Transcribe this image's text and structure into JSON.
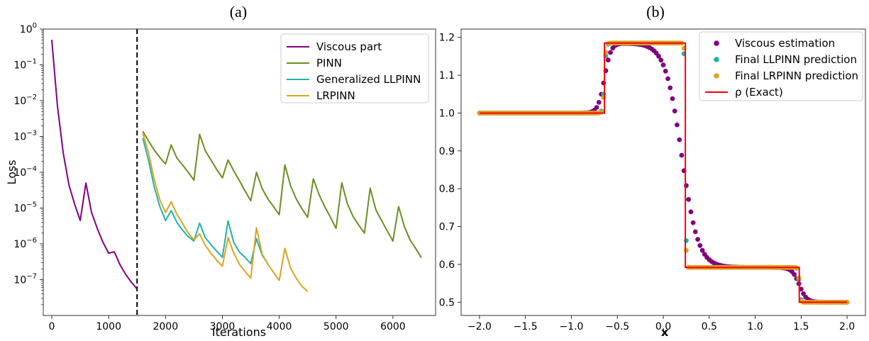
{
  "panel_labels": [
    "(a)",
    "(b)"
  ],
  "chart_data": [
    {
      "type": "line",
      "panel": "(a)",
      "xlabel": "Iterations",
      "ylabel": "Loss",
      "yscale": "log",
      "xlim": [
        -150,
        6750
      ],
      "ylim": [
        1e-08,
        1
      ],
      "xticks": [
        0,
        1000,
        2000,
        3000,
        4000,
        5000,
        6000
      ],
      "xtick_labels": [
        "0",
        "1000",
        "2000",
        "3000",
        "4000",
        "5000",
        "6000"
      ],
      "yticks": [
        1,
        0.1,
        0.01,
        0.001,
        0.0001,
        1e-05,
        1e-06,
        1e-07
      ],
      "ytick_labels": [
        {
          "base": "10",
          "exp": "0"
        },
        {
          "base": "10",
          "exp": "−1"
        },
        {
          "base": "10",
          "exp": "−2"
        },
        {
          "base": "10",
          "exp": "−3"
        },
        {
          "base": "10",
          "exp": "−4"
        },
        {
          "base": "10",
          "exp": "−5"
        },
        {
          "base": "10",
          "exp": "−6"
        },
        {
          "base": "10",
          "exp": "−7"
        }
      ],
      "vline": {
        "x": 1500,
        "style": "dashed",
        "color": "#000000"
      },
      "legend_position": "top-right",
      "series": [
        {
          "name": "Viscous part",
          "color": "#800080",
          "x": [
            0,
            100,
            200,
            300,
            400,
            500,
            600,
            700,
            800,
            900,
            1000,
            1100,
            1200,
            1300,
            1400,
            1500
          ],
          "y": [
            0.5,
            0.007,
            0.00035,
            4.5e-05,
            1.3e-05,
            4.5e-06,
            5e-05,
            7.5e-06,
            2.7e-06,
            1.1e-06,
            5.5e-07,
            6e-07,
            2.6e-07,
            1.4e-07,
            8.5e-08,
            5.5e-08
          ]
        },
        {
          "name": "PINN",
          "color": "#6b8e23",
          "x": [
            1600,
            1700,
            1800,
            1900,
            2000,
            2100,
            2200,
            2300,
            2400,
            2500,
            2600,
            2700,
            2800,
            2900,
            3000,
            3100,
            3200,
            3300,
            3400,
            3500,
            3600,
            3700,
            3800,
            3900,
            4000,
            4100,
            4200,
            4300,
            4400,
            4500,
            4600,
            4700,
            4800,
            4900,
            5000,
            5100,
            5200,
            5300,
            5400,
            5500,
            5600,
            5700,
            5800,
            5900,
            6000,
            6100,
            6200,
            6300,
            6400,
            6500
          ],
          "y": [
            0.0014,
            0.00075,
            0.00042,
            0.00026,
            0.00017,
            0.00058,
            0.00025,
            0.00016,
            0.0001,
            6e-05,
            0.00115,
            0.0004,
            0.00022,
            0.00012,
            7e-05,
            0.00022,
            0.00011,
            5.8e-05,
            3e-05,
            1.6e-05,
            0.0001,
            3.5e-05,
            1.8e-05,
            1.1e-05,
            6.5e-06,
            0.00016,
            4.2e-05,
            1.8e-05,
            9.5e-06,
            5.5e-06,
            6.6e-05,
            2.4e-05,
            1.1e-05,
            5.6e-06,
            2.7e-06,
            5.1e-05,
            1.3e-05,
            5.8e-06,
            3.3e-06,
            2e-06,
            3.6e-05,
            9e-06,
            4.5e-06,
            2.3e-06,
            1.2e-06,
            1.1e-05,
            3.1e-06,
            1.3e-06,
            7.5e-07,
            4.1e-07
          ]
        },
        {
          "name": "Generalized LLPINN",
          "color": "#20b2aa",
          "x": [
            1600,
            1700,
            1800,
            1900,
            2000,
            2100,
            2200,
            2300,
            2400,
            2500,
            2600,
            2700,
            2800,
            2900,
            3000,
            3100,
            3200,
            3300,
            3400,
            3500,
            3600,
            3700,
            3800
          ],
          "y": [
            0.0009,
            0.00022,
            4e-05,
            1.1e-05,
            4.5e-06,
            8.5e-06,
            4e-06,
            2.4e-06,
            1.6e-06,
            1.2e-06,
            3.8e-06,
            1.5e-06,
            9.5e-07,
            6.3e-07,
            4.2e-07,
            4.4e-06,
            1.1e-06,
            5.9e-07,
            4.2e-07,
            2.8e-07,
            1.4e-06,
            4.8e-07,
            2.8e-07
          ]
        },
        {
          "name": "LRPINN",
          "color": "#daa520",
          "x": [
            1600,
            1700,
            1800,
            1900,
            2000,
            2100,
            2200,
            2300,
            2400,
            2500,
            2600,
            2700,
            2800,
            2900,
            3000,
            3100,
            3200,
            3300,
            3400,
            3500,
            3600,
            3700,
            3800,
            3900,
            4000,
            4100,
            4200,
            4300,
            4400,
            4500
          ],
          "y": [
            0.00125,
            0.00035,
            6.5e-05,
            1.7e-05,
            7.5e-06,
            1.5e-05,
            6.8e-06,
            3.7e-06,
            2e-06,
            1.3e-06,
            1.9e-06,
            9e-07,
            5.5e-07,
            3.5e-07,
            2.4e-07,
            1.5e-06,
            5.5e-07,
            2.7e-07,
            1.7e-07,
            1.1e-07,
            2.8e-06,
            5.2e-07,
            2.7e-07,
            1.6e-07,
            9.5e-08,
            7.5e-07,
            2.1e-07,
            1.1e-07,
            6.5e-08,
            4.7e-08
          ]
        }
      ]
    },
    {
      "type": "scatter",
      "panel": "(b)",
      "xlabel": "x",
      "xlim": [
        -2.2,
        2.2
      ],
      "ylim": [
        0.465,
        1.222
      ],
      "xticks": [
        -2.0,
        -1.5,
        -1.0,
        -0.5,
        0.0,
        0.5,
        1.0,
        1.5,
        2.0
      ],
      "xtick_labels": [
        "−2.0",
        "−1.5",
        "−1.0",
        "−0.5",
        "0.0",
        "0.5",
        "1.0",
        "1.5",
        "2.0"
      ],
      "yticks": [
        0.5,
        0.6,
        0.7,
        0.8,
        0.9,
        1.0,
        1.1,
        1.2
      ],
      "ytick_labels": [
        "0.5",
        "0.6",
        "0.7",
        "0.8",
        "0.9",
        "1.0",
        "1.1",
        "1.2"
      ],
      "legend_position": "top-right",
      "exact_solution": {
        "rho_left": 1.0,
        "rho_star_left": 1.185,
        "rho_star_right": 0.592,
        "rho_right": 0.5,
        "x_rarefaction_start": -0.64,
        "x_contact": 0.24,
        "x_shock": 1.48
      },
      "series": [
        {
          "name": "Viscous estimation",
          "color": "#800080",
          "marker": "circle",
          "profile": {
            "smoothing_contact": 0.09,
            "smoothing_shock": 0.04,
            "smoothing_rarefaction": 0.035,
            "shift_contact": -0.04
          }
        },
        {
          "name": "Final LLPINN prediction",
          "color": "#20b2aa",
          "marker": "circle",
          "profile": {
            "smoothing_contact": 0.005,
            "smoothing_shock": 0.008,
            "smoothing_rarefaction": 0.01,
            "shift_contact": 0
          }
        },
        {
          "name": "Final LRPINN prediction",
          "color": "#daa520",
          "marker": "circle",
          "profile": {
            "smoothing_contact": 0.004,
            "smoothing_shock": 0.006,
            "smoothing_rarefaction": 0.008,
            "shift_contact": 0
          }
        },
        {
          "name": "ρ (Exact)",
          "color": "#ff0000",
          "marker": "line"
        }
      ],
      "sample_points": {
        "x_start": -2.0,
        "x_end": 2.0,
        "count": 161
      }
    }
  ]
}
